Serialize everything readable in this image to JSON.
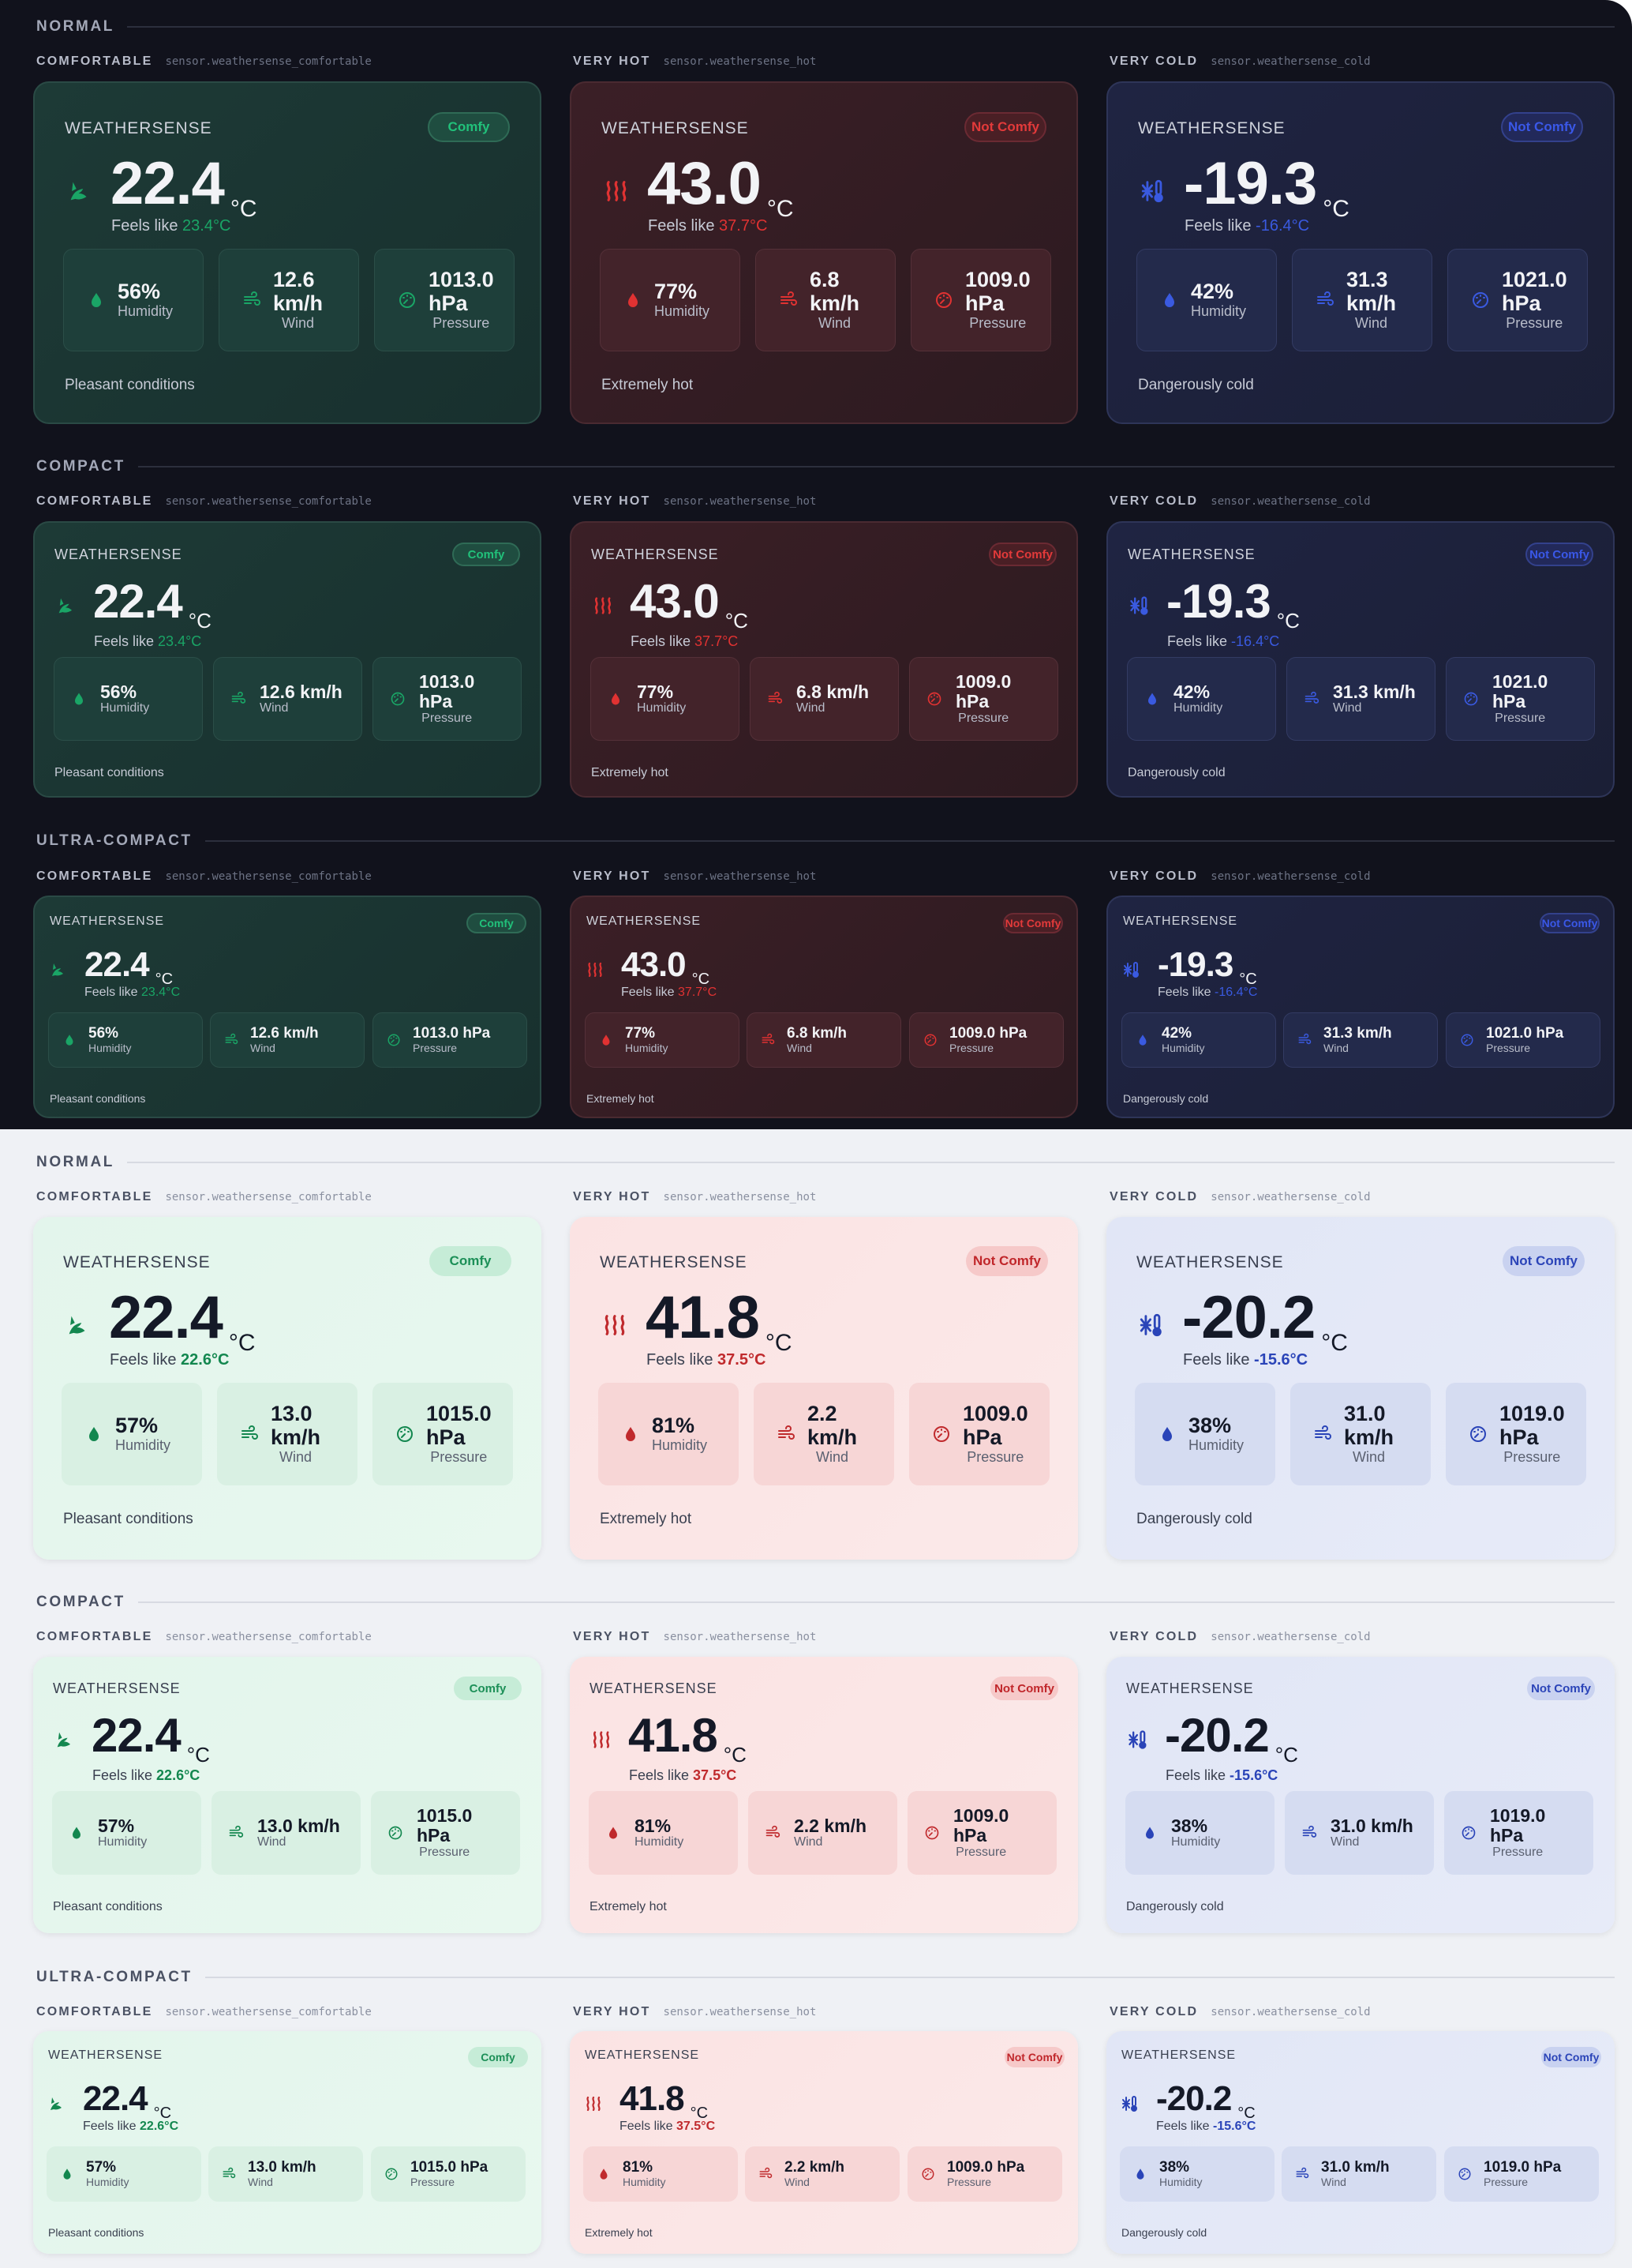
{
  "sections": {
    "normal": "NORMAL",
    "compact": "COMPACT",
    "ultra": "ULTRA-COMPACT"
  },
  "column_labels": {
    "comfortable": {
      "label": "COMFORTABLE",
      "entity": "sensor.weathersense_comfortable"
    },
    "hot": {
      "label": "VERY HOT",
      "entity": "sensor.weathersense_hot"
    },
    "cold": {
      "label": "VERY COLD",
      "entity": "sensor.weathersense_cold"
    }
  },
  "card_title": "WEATHERSENSE",
  "stat_labels": {
    "humidity": "Humidity",
    "wind": "Wind",
    "pressure": "Pressure"
  },
  "unit": "°C",
  "feels_prefix": "Feels like",
  "dark": {
    "comfortable": {
      "badge": "Comfy",
      "temp": "22.4",
      "feels": "23.4°C",
      "humidity": "56%",
      "wind": "12.6 km/h",
      "wind_n1": "12.6",
      "wind_n2": "km/h",
      "pressure": "1013.0 hPa",
      "pressure_n1": "1013.0",
      "pressure_n2": "hPa",
      "condition": "Pleasant conditions"
    },
    "hot": {
      "badge": "Not Comfy",
      "temp": "43.0",
      "feels": "37.7°C",
      "humidity": "77%",
      "wind": "6.8 km/h",
      "wind_n1": "6.8",
      "wind_n2": "km/h",
      "pressure": "1009.0 hPa",
      "pressure_n1": "1009.0",
      "pressure_n2": "hPa",
      "condition": "Extremely hot"
    },
    "cold": {
      "badge": "Not Comfy",
      "temp": "-19.3",
      "feels": "-16.4°C",
      "humidity": "42%",
      "wind": "31.3 km/h",
      "wind_n1": "31.3",
      "wind_n2": "km/h",
      "pressure": "1021.0 hPa",
      "pressure_n1": "1021.0",
      "pressure_n2": "hPa",
      "condition": "Dangerously cold"
    }
  },
  "light": {
    "comfortable": {
      "badge": "Comfy",
      "temp": "22.4",
      "feels": "22.6°C",
      "humidity": "57%",
      "wind": "13.0 km/h",
      "wind_n1": "13.0",
      "wind_n2": "km/h",
      "pressure": "1015.0 hPa",
      "pressure_n1": "1015.0",
      "pressure_n2": "hPa",
      "condition": "Pleasant conditions"
    },
    "hot": {
      "badge": "Not Comfy",
      "temp": "41.8",
      "feels": "37.5°C",
      "humidity": "81%",
      "wind": "2.2 km/h",
      "wind_n1": "2.2",
      "wind_n2": "km/h",
      "pressure": "1009.0 hPa",
      "pressure_n1": "1009.0",
      "pressure_n2": "hPa",
      "condition": "Extremely hot"
    },
    "cold": {
      "badge": "Not Comfy",
      "temp": "-20.2",
      "feels": "-15.6°C",
      "humidity": "38%",
      "wind": "31.0 km/h",
      "wind_n1": "31.0",
      "wind_n2": "km/h",
      "pressure": "1019.0 hPa",
      "pressure_n1": "1019.0",
      "pressure_n2": "hPa",
      "condition": "Dangerously cold"
    }
  },
  "icons": {
    "comfortable": "thumb-leaf-icon",
    "hot": "heat-waves-icon",
    "cold": "snowflake-thermometer-icon",
    "humidity": "droplet-icon",
    "wind": "wind-icon",
    "pressure": "gauge-icon"
  },
  "colors": {
    "dark_bg": "#11121c",
    "light_bg": "#eff1f5",
    "green": "#1aa566",
    "red": "#e03232",
    "blue": "#3a5ae0"
  }
}
